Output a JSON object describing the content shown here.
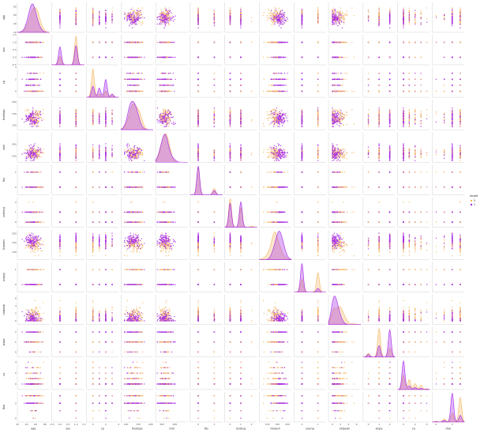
{
  "chart_data": {
    "type": "scatter",
    "kind": "pairplot-matrix",
    "variables": [
      {
        "name": "age",
        "range": [
          20,
          90
        ],
        "ticks": [
          {
            "v": 20,
            "t": "20"
          },
          {
            "v": 40,
            "t": "40"
          },
          {
            "v": 60,
            "t": "60"
          },
          {
            "v": 80,
            "t": "80"
          }
        ]
      },
      {
        "name": "sex",
        "range": [
          -0.5,
          1.5
        ],
        "ticks": [
          {
            "v": -0.5,
            "t": "-0.5"
          },
          {
            "v": 0,
            "t": "0.0"
          },
          {
            "v": 0.5,
            "t": "0.5"
          },
          {
            "v": 1,
            "t": "1.0"
          },
          {
            "v": 1.5,
            "t": "1.5"
          }
        ]
      },
      {
        "name": "cp",
        "range": [
          -1,
          4
        ],
        "ticks": [
          {
            "v": 0,
            "t": "0"
          },
          {
            "v": 2,
            "t": "2"
          },
          {
            "v": 4,
            "t": "4"
          }
        ]
      },
      {
        "name": "trestbps",
        "range": [
          80,
          210
        ],
        "ticks": [
          {
            "v": 100,
            "t": "100"
          },
          {
            "v": 150,
            "t": "150"
          },
          {
            "v": 200,
            "t": "200"
          }
        ]
      },
      {
        "name": "chol",
        "range": [
          100,
          600
        ],
        "ticks": [
          {
            "v": 200,
            "t": "200"
          },
          {
            "v": 400,
            "t": "400"
          }
        ]
      },
      {
        "name": "fbs",
        "range": [
          -0.5,
          1.5
        ],
        "ticks": [
          {
            "v": 0,
            "t": "0"
          },
          {
            "v": 1,
            "t": "1"
          }
        ]
      },
      {
        "name": "restecg",
        "range": [
          -0.5,
          2.5
        ],
        "ticks": [
          {
            "v": 0,
            "t": "0"
          },
          {
            "v": 1,
            "t": "1"
          },
          {
            "v": 2,
            "t": "2"
          }
        ]
      },
      {
        "name": "thalach",
        "range": [
          60,
          220
        ],
        "ticks": [
          {
            "v": 100,
            "t": "100"
          },
          {
            "v": 150,
            "t": "150"
          },
          {
            "v": 200,
            "t": "200"
          }
        ]
      },
      {
        "name": "exang",
        "range": [
          -0.5,
          1.5
        ],
        "ticks": [
          {
            "v": 0,
            "t": "0"
          },
          {
            "v": 1,
            "t": "1"
          }
        ]
      },
      {
        "name": "oldpeak",
        "range": [
          -1,
          7
        ],
        "ticks": [
          {
            "v": 0,
            "t": "0"
          },
          {
            "v": 2,
            "t": "2"
          },
          {
            "v": 4,
            "t": "4"
          },
          {
            "v": 6,
            "t": "6"
          }
        ]
      },
      {
        "name": "slope",
        "range": [
          -0.5,
          2.5
        ],
        "ticks": [
          {
            "v": 0,
            "t": "0"
          },
          {
            "v": 1,
            "t": "1"
          },
          {
            "v": 2,
            "t": "2"
          }
        ]
      },
      {
        "name": "ca",
        "range": [
          -1,
          4.5
        ],
        "ticks": [
          {
            "v": 0,
            "t": "0"
          },
          {
            "v": 2,
            "t": "2"
          },
          {
            "v": 4,
            "t": "4"
          }
        ]
      },
      {
        "name": "thal",
        "range": [
          -0.5,
          3.5
        ],
        "ticks": [
          {
            "v": 0,
            "t": "0"
          },
          {
            "v": 2,
            "t": "2"
          }
        ]
      }
    ],
    "hue": {
      "name": "target",
      "levels": [
        {
          "label": "0",
          "color": "#f3b766"
        },
        {
          "label": "1",
          "color": "#a426e8"
        }
      ]
    },
    "diagonal": "kde",
    "offdiagonal": "scatter",
    "legend_position": "right"
  }
}
